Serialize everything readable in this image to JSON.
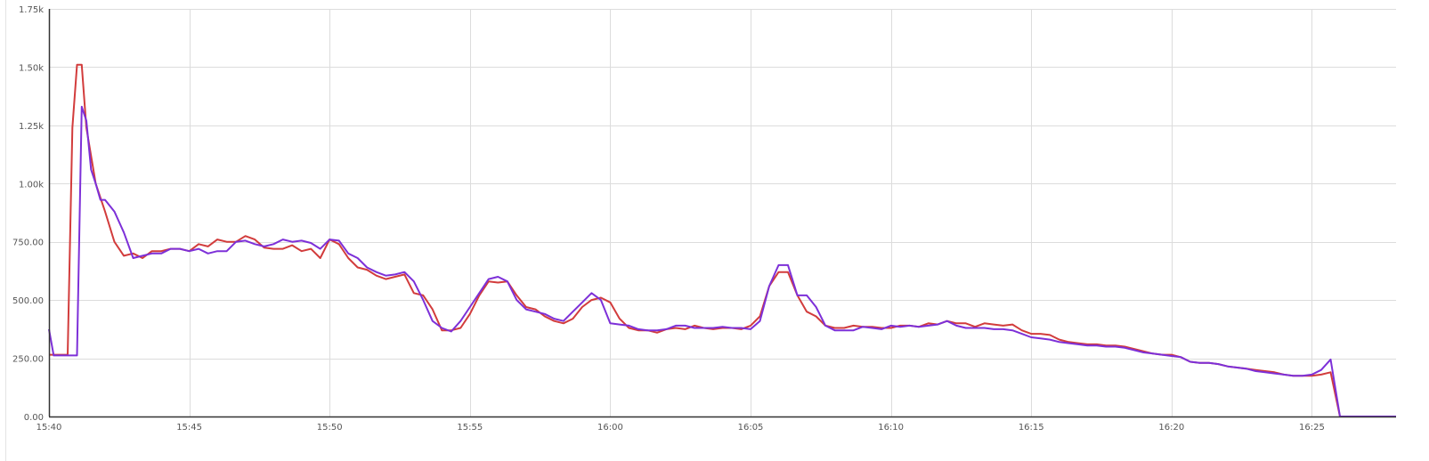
{
  "chart_data": {
    "type": "line",
    "title": "",
    "xlabel": "",
    "ylabel": "",
    "ylim": [
      0,
      1750
    ],
    "y_ticks": [
      {
        "value": 0,
        "label": "0.00"
      },
      {
        "value": 250,
        "label": "250.00"
      },
      {
        "value": 500,
        "label": "500.00"
      },
      {
        "value": 750,
        "label": "750.00"
      },
      {
        "value": 1000,
        "label": "1.00k"
      },
      {
        "value": 1250,
        "label": "1.25k"
      },
      {
        "value": 1500,
        "label": "1.50k"
      },
      {
        "value": 1750,
        "label": "1.75k"
      }
    ],
    "xlim": [
      "15:40",
      "16:28"
    ],
    "x_ticks": [
      "15:40",
      "15:45",
      "15:50",
      "15:55",
      "16:00",
      "16:05",
      "16:10",
      "16:15",
      "16:20",
      "16:25"
    ],
    "grid": true,
    "legend": "none",
    "series": [
      {
        "color": "#d23c3c",
        "points": [
          [
            "15:40:00",
            265
          ],
          [
            "15:40:20",
            265
          ],
          [
            "15:40:40",
            265
          ],
          [
            "15:40:50",
            1240
          ],
          [
            "15:41:00",
            1510
          ],
          [
            "15:41:10",
            1510
          ],
          [
            "15:41:20",
            1240
          ],
          [
            "15:41:40",
            1000
          ],
          [
            "15:42:00",
            880
          ],
          [
            "15:42:20",
            750
          ],
          [
            "15:42:40",
            690
          ],
          [
            "15:43:00",
            700
          ],
          [
            "15:43:20",
            680
          ],
          [
            "15:43:40",
            710
          ],
          [
            "15:44:00",
            710
          ],
          [
            "15:44:20",
            720
          ],
          [
            "15:44:40",
            720
          ],
          [
            "15:45:00",
            710
          ],
          [
            "15:45:20",
            740
          ],
          [
            "15:45:40",
            730
          ],
          [
            "15:46:00",
            760
          ],
          [
            "15:46:20",
            750
          ],
          [
            "15:46:40",
            750
          ],
          [
            "15:47:00",
            775
          ],
          [
            "15:47:20",
            760
          ],
          [
            "15:47:40",
            725
          ],
          [
            "15:48:00",
            720
          ],
          [
            "15:48:20",
            720
          ],
          [
            "15:48:40",
            735
          ],
          [
            "15:49:00",
            710
          ],
          [
            "15:49:20",
            720
          ],
          [
            "15:49:40",
            680
          ],
          [
            "15:50:00",
            760
          ],
          [
            "15:50:20",
            740
          ],
          [
            "15:50:40",
            680
          ],
          [
            "15:51:00",
            640
          ],
          [
            "15:51:20",
            630
          ],
          [
            "15:51:40",
            605
          ],
          [
            "15:52:00",
            590
          ],
          [
            "15:52:20",
            600
          ],
          [
            "15:52:40",
            610
          ],
          [
            "15:53:00",
            530
          ],
          [
            "15:53:20",
            520
          ],
          [
            "15:53:40",
            460
          ],
          [
            "15:54:00",
            370
          ],
          [
            "15:54:20",
            370
          ],
          [
            "15:54:40",
            380
          ],
          [
            "15:55:00",
            440
          ],
          [
            "15:55:20",
            520
          ],
          [
            "15:55:40",
            580
          ],
          [
            "15:56:00",
            575
          ],
          [
            "15:56:20",
            580
          ],
          [
            "15:56:40",
            520
          ],
          [
            "15:57:00",
            470
          ],
          [
            "15:57:20",
            460
          ],
          [
            "15:57:40",
            430
          ],
          [
            "15:58:00",
            410
          ],
          [
            "15:58:20",
            400
          ],
          [
            "15:58:40",
            420
          ],
          [
            "15:59:00",
            470
          ],
          [
            "15:59:20",
            500
          ],
          [
            "15:59:40",
            510
          ],
          [
            "16:00:00",
            490
          ],
          [
            "16:00:20",
            420
          ],
          [
            "16:00:40",
            380
          ],
          [
            "16:01:00",
            370
          ],
          [
            "16:01:20",
            370
          ],
          [
            "16:01:40",
            360
          ],
          [
            "16:02:00",
            375
          ],
          [
            "16:02:20",
            380
          ],
          [
            "16:02:40",
            375
          ],
          [
            "16:03:00",
            390
          ],
          [
            "16:03:20",
            380
          ],
          [
            "16:03:40",
            375
          ],
          [
            "16:04:00",
            380
          ],
          [
            "16:04:20",
            380
          ],
          [
            "16:04:40",
            375
          ],
          [
            "16:05:00",
            390
          ],
          [
            "16:05:20",
            430
          ],
          [
            "16:05:40",
            560
          ],
          [
            "16:06:00",
            620
          ],
          [
            "16:06:20",
            620
          ],
          [
            "16:06:40",
            520
          ],
          [
            "16:07:00",
            450
          ],
          [
            "16:07:20",
            430
          ],
          [
            "16:07:40",
            390
          ],
          [
            "16:08:00",
            380
          ],
          [
            "16:08:20",
            380
          ],
          [
            "16:08:40",
            390
          ],
          [
            "16:09:00",
            385
          ],
          [
            "16:09:20",
            385
          ],
          [
            "16:09:40",
            380
          ],
          [
            "16:10:00",
            380
          ],
          [
            "16:10:20",
            390
          ],
          [
            "16:10:40",
            390
          ],
          [
            "16:11:00",
            385
          ],
          [
            "16:11:20",
            400
          ],
          [
            "16:11:40",
            395
          ],
          [
            "16:12:00",
            410
          ],
          [
            "16:12:20",
            400
          ],
          [
            "16:12:40",
            400
          ],
          [
            "16:13:00",
            385
          ],
          [
            "16:13:20",
            400
          ],
          [
            "16:13:40",
            395
          ],
          [
            "16:14:00",
            390
          ],
          [
            "16:14:20",
            395
          ],
          [
            "16:14:40",
            370
          ],
          [
            "16:15:00",
            355
          ],
          [
            "16:15:20",
            355
          ],
          [
            "16:15:40",
            350
          ],
          [
            "16:16:00",
            330
          ],
          [
            "16:16:20",
            320
          ],
          [
            "16:16:40",
            315
          ],
          [
            "16:17:00",
            310
          ],
          [
            "16:17:20",
            310
          ],
          [
            "16:17:40",
            305
          ],
          [
            "16:18:00",
            305
          ],
          [
            "16:18:20",
            300
          ],
          [
            "16:18:40",
            290
          ],
          [
            "16:19:00",
            280
          ],
          [
            "16:19:20",
            270
          ],
          [
            "16:19:40",
            265
          ],
          [
            "16:20:00",
            265
          ],
          [
            "16:20:20",
            255
          ],
          [
            "16:20:40",
            235
          ],
          [
            "16:21:00",
            230
          ],
          [
            "16:21:20",
            230
          ],
          [
            "16:21:40",
            225
          ],
          [
            "16:22:00",
            215
          ],
          [
            "16:22:20",
            210
          ],
          [
            "16:22:40",
            205
          ],
          [
            "16:23:00",
            200
          ],
          [
            "16:23:20",
            195
          ],
          [
            "16:23:40",
            190
          ],
          [
            "16:24:00",
            180
          ],
          [
            "16:24:20",
            175
          ],
          [
            "16:24:40",
            175
          ],
          [
            "16:25:00",
            175
          ],
          [
            "16:25:20",
            180
          ],
          [
            "16:25:40",
            190
          ],
          [
            "16:26:00",
            0
          ],
          [
            "16:26:20",
            0
          ],
          [
            "16:27:00",
            0
          ],
          [
            "16:28:00",
            0
          ]
        ]
      },
      {
        "color": "#7d30d8",
        "points": [
          [
            "15:40:00",
            375
          ],
          [
            "15:40:10",
            262
          ],
          [
            "15:40:40",
            262
          ],
          [
            "15:41:00",
            262
          ],
          [
            "15:41:10",
            1330
          ],
          [
            "15:41:20",
            1270
          ],
          [
            "15:41:30",
            1060
          ],
          [
            "15:41:40",
            1000
          ],
          [
            "15:41:50",
            930
          ],
          [
            "15:42:00",
            930
          ],
          [
            "15:42:20",
            880
          ],
          [
            "15:42:40",
            790
          ],
          [
            "15:43:00",
            680
          ],
          [
            "15:43:20",
            690
          ],
          [
            "15:43:40",
            700
          ],
          [
            "15:44:00",
            700
          ],
          [
            "15:44:20",
            720
          ],
          [
            "15:44:40",
            720
          ],
          [
            "15:45:00",
            710
          ],
          [
            "15:45:20",
            720
          ],
          [
            "15:45:40",
            700
          ],
          [
            "15:46:00",
            710
          ],
          [
            "15:46:20",
            710
          ],
          [
            "15:46:40",
            750
          ],
          [
            "15:47:00",
            755
          ],
          [
            "15:47:20",
            740
          ],
          [
            "15:47:40",
            730
          ],
          [
            "15:48:00",
            740
          ],
          [
            "15:48:20",
            760
          ],
          [
            "15:48:40",
            750
          ],
          [
            "15:49:00",
            755
          ],
          [
            "15:49:20",
            745
          ],
          [
            "15:49:40",
            720
          ],
          [
            "15:50:00",
            760
          ],
          [
            "15:50:20",
            755
          ],
          [
            "15:50:40",
            700
          ],
          [
            "15:51:00",
            680
          ],
          [
            "15:51:20",
            640
          ],
          [
            "15:51:40",
            620
          ],
          [
            "15:52:00",
            605
          ],
          [
            "15:52:20",
            610
          ],
          [
            "15:52:40",
            620
          ],
          [
            "15:53:00",
            580
          ],
          [
            "15:53:20",
            500
          ],
          [
            "15:53:40",
            410
          ],
          [
            "15:54:00",
            380
          ],
          [
            "15:54:20",
            365
          ],
          [
            "15:54:40",
            410
          ],
          [
            "15:55:00",
            470
          ],
          [
            "15:55:20",
            530
          ],
          [
            "15:55:40",
            590
          ],
          [
            "15:56:00",
            600
          ],
          [
            "15:56:20",
            580
          ],
          [
            "15:56:40",
            500
          ],
          [
            "15:57:00",
            460
          ],
          [
            "15:57:20",
            450
          ],
          [
            "15:57:40",
            440
          ],
          [
            "15:58:00",
            420
          ],
          [
            "15:58:20",
            410
          ],
          [
            "15:58:40",
            450
          ],
          [
            "15:59:00",
            490
          ],
          [
            "15:59:20",
            530
          ],
          [
            "15:59:40",
            500
          ],
          [
            "16:00:00",
            400
          ],
          [
            "16:00:20",
            395
          ],
          [
            "16:00:40",
            390
          ],
          [
            "16:01:00",
            375
          ],
          [
            "16:01:20",
            370
          ],
          [
            "16:01:40",
            370
          ],
          [
            "16:02:00",
            375
          ],
          [
            "16:02:20",
            390
          ],
          [
            "16:02:40",
            390
          ],
          [
            "16:03:00",
            380
          ],
          [
            "16:03:20",
            380
          ],
          [
            "16:03:40",
            380
          ],
          [
            "16:04:00",
            385
          ],
          [
            "16:04:20",
            380
          ],
          [
            "16:04:40",
            380
          ],
          [
            "16:05:00",
            375
          ],
          [
            "16:05:20",
            410
          ],
          [
            "16:05:40",
            560
          ],
          [
            "16:06:00",
            650
          ],
          [
            "16:06:20",
            650
          ],
          [
            "16:06:40",
            520
          ],
          [
            "16:07:00",
            520
          ],
          [
            "16:07:20",
            470
          ],
          [
            "16:07:40",
            390
          ],
          [
            "16:08:00",
            370
          ],
          [
            "16:08:20",
            370
          ],
          [
            "16:08:40",
            370
          ],
          [
            "16:09:00",
            385
          ],
          [
            "16:09:20",
            380
          ],
          [
            "16:09:40",
            375
          ],
          [
            "16:10:00",
            390
          ],
          [
            "16:10:20",
            385
          ],
          [
            "16:10:40",
            390
          ],
          [
            "16:11:00",
            385
          ],
          [
            "16:11:20",
            390
          ],
          [
            "16:11:40",
            395
          ],
          [
            "16:12:00",
            410
          ],
          [
            "16:12:20",
            390
          ],
          [
            "16:12:40",
            380
          ],
          [
            "16:13:00",
            380
          ],
          [
            "16:13:20",
            380
          ],
          [
            "16:13:40",
            375
          ],
          [
            "16:14:00",
            375
          ],
          [
            "16:14:20",
            370
          ],
          [
            "16:14:40",
            355
          ],
          [
            "16:15:00",
            340
          ],
          [
            "16:15:20",
            335
          ],
          [
            "16:15:40",
            330
          ],
          [
            "16:16:00",
            320
          ],
          [
            "16:16:20",
            315
          ],
          [
            "16:16:40",
            310
          ],
          [
            "16:17:00",
            305
          ],
          [
            "16:17:20",
            305
          ],
          [
            "16:17:40",
            300
          ],
          [
            "16:18:00",
            300
          ],
          [
            "16:18:20",
            295
          ],
          [
            "16:18:40",
            285
          ],
          [
            "16:19:00",
            275
          ],
          [
            "16:19:20",
            270
          ],
          [
            "16:19:40",
            265
          ],
          [
            "16:20:00",
            260
          ],
          [
            "16:20:20",
            255
          ],
          [
            "16:20:40",
            235
          ],
          [
            "16:21:00",
            230
          ],
          [
            "16:21:20",
            230
          ],
          [
            "16:21:40",
            225
          ],
          [
            "16:22:00",
            215
          ],
          [
            "16:22:20",
            210
          ],
          [
            "16:22:40",
            205
          ],
          [
            "16:23:00",
            195
          ],
          [
            "16:23:20",
            190
          ],
          [
            "16:23:40",
            185
          ],
          [
            "16:24:00",
            180
          ],
          [
            "16:24:20",
            175
          ],
          [
            "16:24:40",
            175
          ],
          [
            "16:25:00",
            180
          ],
          [
            "16:25:20",
            200
          ],
          [
            "16:25:40",
            245
          ],
          [
            "16:26:00",
            0
          ],
          [
            "16:26:20",
            0
          ],
          [
            "16:27:00",
            0
          ],
          [
            "16:28:00",
            0
          ]
        ]
      }
    ]
  }
}
